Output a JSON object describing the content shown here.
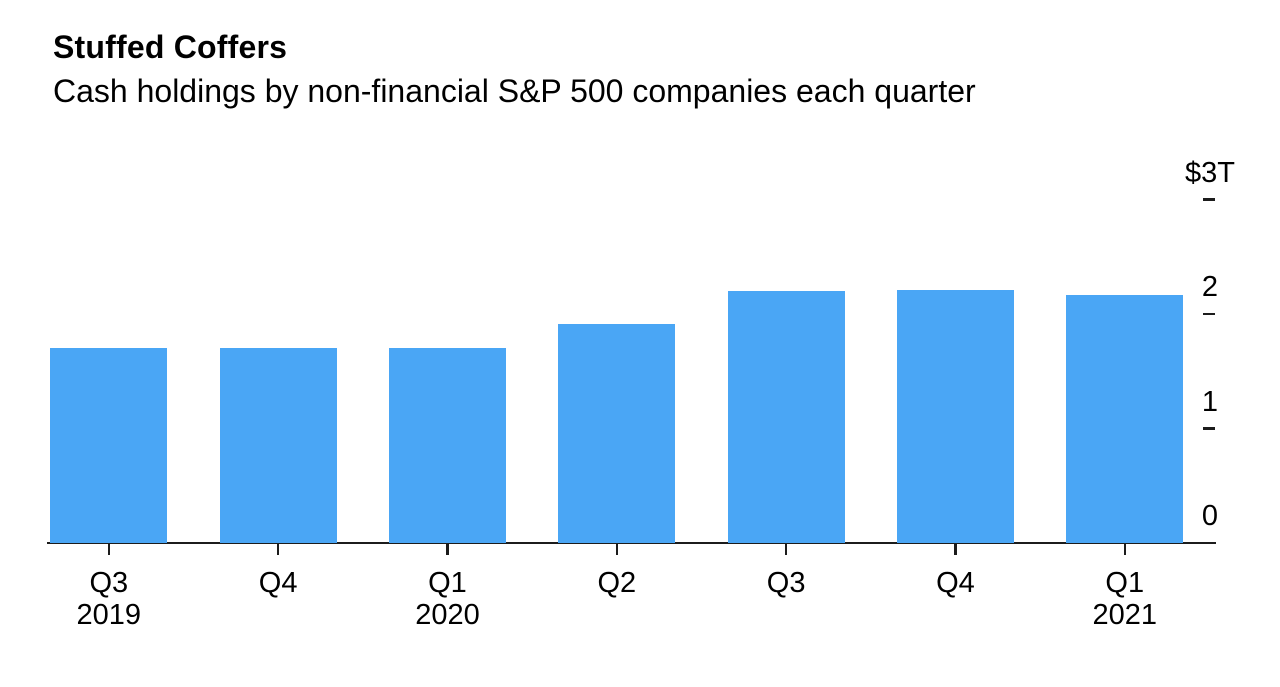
{
  "header": {
    "title": "Stuffed Coffers",
    "subtitle": "Cash holdings by non-financial S&P 500 companies each quarter"
  },
  "chart_data": {
    "type": "bar",
    "title": "Stuffed Coffers",
    "subtitle": "Cash holdings by non-financial S&P 500 companies each quarter",
    "unit": "trillions of US dollars",
    "categories": [
      {
        "quarter": "Q3",
        "year": "2019"
      },
      {
        "quarter": "Q4",
        "year": ""
      },
      {
        "quarter": "Q1",
        "year": "2020"
      },
      {
        "quarter": "Q2",
        "year": ""
      },
      {
        "quarter": "Q3",
        "year": ""
      },
      {
        "quarter": "Q4",
        "year": ""
      },
      {
        "quarter": "Q1",
        "year": "2021"
      }
    ],
    "values": [
      1.7,
      1.7,
      1.7,
      1.91,
      2.2,
      2.21,
      2.17
    ],
    "y_ticks": [
      {
        "label": "$3T",
        "value": 3,
        "dash": true
      },
      {
        "label": "2",
        "value": 2,
        "dash": true
      },
      {
        "label": "1",
        "value": 1,
        "dash": true
      },
      {
        "label": "0",
        "value": 0,
        "dash": false
      }
    ],
    "ylim": [
      0,
      3
    ],
    "grid": false,
    "legend": false,
    "bar_color": "#4aa6f5",
    "axis_color": "#1c1c1c",
    "text_color": "#000000"
  }
}
